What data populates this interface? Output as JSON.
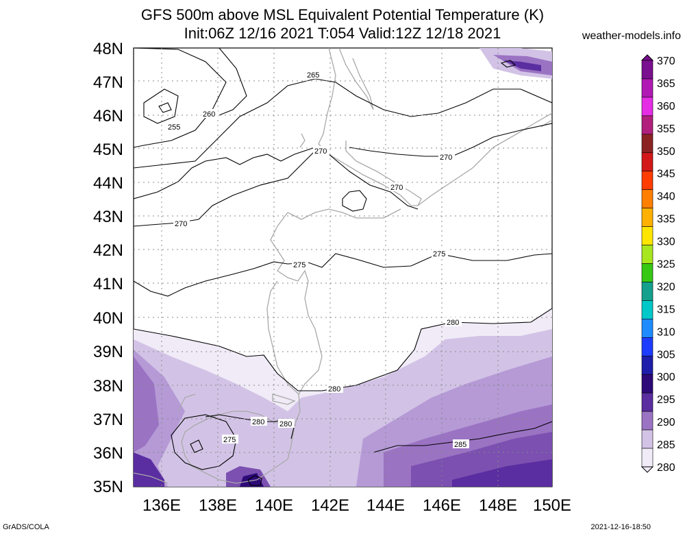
{
  "title": {
    "line1": "GFS 500m above MSL Equivalent Potential Temperature (K)",
    "line2": "Init:06Z 12/16 2021 T:054 Valid:12Z 12/18 2021"
  },
  "brand": "weather-models.info",
  "footer": {
    "left": "GrADS/COLA",
    "right": "2021-12-16-18:50"
  },
  "map": {
    "lat_labels": [
      "48N",
      "47N",
      "46N",
      "45N",
      "44N",
      "43N",
      "42N",
      "41N",
      "40N",
      "39N",
      "38N",
      "37N",
      "36N",
      "35N"
    ],
    "lon_labels": [
      "136E",
      "138E",
      "140E",
      "142E",
      "144E",
      "146E",
      "148E",
      "150E"
    ],
    "contour_labels": [
      "265",
      "260",
      "255",
      "270",
      "270",
      "270",
      "270",
      "275",
      "275",
      "280",
      "280",
      "280",
      "280",
      "275",
      "285"
    ]
  },
  "colorbar": {
    "levels": [
      "370",
      "365",
      "360",
      "355",
      "350",
      "345",
      "340",
      "335",
      "330",
      "325",
      "320",
      "315",
      "310",
      "305",
      "300",
      "295",
      "290",
      "285",
      "280"
    ],
    "colors": [
      "#7a0f8f",
      "#b019b4",
      "#e62de6",
      "#b0207c",
      "#8b2323",
      "#d21818",
      "#ff3d00",
      "#ff7f00",
      "#ffb000",
      "#ffe600",
      "#a8e61e",
      "#37c814",
      "#14a08c",
      "#00c8c8",
      "#1e8cff",
      "#1e3cff",
      "#1e1eaa",
      "#2d0a78",
      "#5a2da0",
      "#9b73c3",
      "#d2c3e6",
      "#f0ebf7"
    ]
  }
}
